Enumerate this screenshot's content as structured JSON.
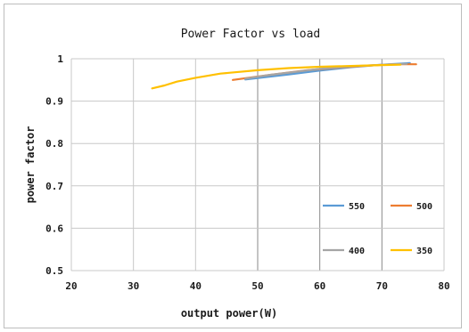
{
  "chart_data": {
    "type": "line",
    "title": "Power Factor vs load",
    "xlabel": "output power(W)",
    "ylabel": "power factor",
    "xlim": [
      20,
      80
    ],
    "ylim": [
      0.5,
      1
    ],
    "x_ticks": [
      "20",
      "30",
      "40",
      "50",
      "60",
      "70",
      "80"
    ],
    "y_ticks": [
      "0.5",
      "0.6",
      "0.7",
      "0.8",
      "0.9",
      "1"
    ],
    "grid": true,
    "legend_placement": "bottom-right",
    "series": [
      {
        "name": "550",
        "color": "#5b9bd5",
        "x": [
          48,
          55,
          60,
          65,
          70,
          74.5
        ],
        "y": [
          0.951,
          0.963,
          0.972,
          0.98,
          0.986,
          0.99
        ]
      },
      {
        "name": "500",
        "color": "#ed7d31",
        "x": [
          46,
          52,
          58,
          63,
          68,
          72,
          75.5
        ],
        "y": [
          0.95,
          0.962,
          0.973,
          0.979,
          0.984,
          0.987,
          0.987
        ]
      },
      {
        "name": "400",
        "color": "#a5a5a5",
        "x": [
          48,
          52,
          56,
          60,
          65,
          70,
          74
        ],
        "y": [
          0.953,
          0.962,
          0.969,
          0.976,
          0.982,
          0.986,
          0.988
        ]
      },
      {
        "name": "350",
        "color": "#ffc000",
        "x": [
          33,
          35,
          37,
          40,
          44,
          50,
          55,
          60,
          65,
          70,
          73
        ],
        "y": [
          0.93,
          0.937,
          0.946,
          0.955,
          0.965,
          0.973,
          0.978,
          0.981,
          0.983,
          0.985,
          0.986
        ]
      }
    ]
  }
}
